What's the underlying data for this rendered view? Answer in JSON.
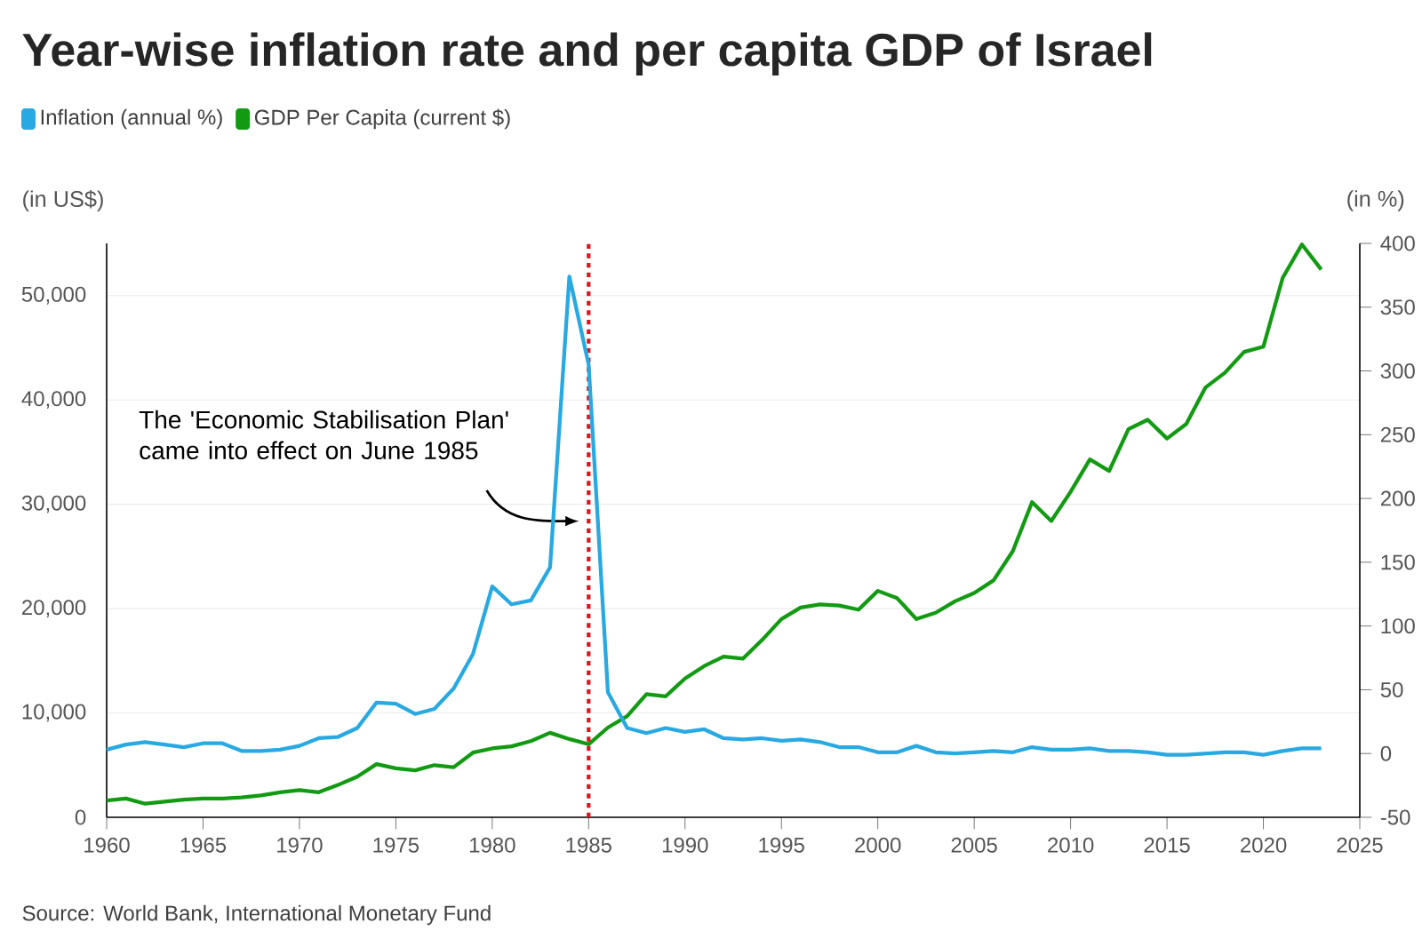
{
  "chart_data": {
    "type": "line",
    "title": "Year-wise inflation rate and per capita GDP of Israel",
    "ylabel": "(in US$)",
    "y2label": "(in %)",
    "x": [
      1960,
      1961,
      1962,
      1963,
      1964,
      1965,
      1966,
      1967,
      1968,
      1969,
      1970,
      1971,
      1972,
      1973,
      1974,
      1975,
      1976,
      1977,
      1978,
      1979,
      1980,
      1981,
      1982,
      1983,
      1984,
      1985,
      1986,
      1987,
      1988,
      1989,
      1990,
      1991,
      1992,
      1993,
      1994,
      1995,
      1996,
      1997,
      1998,
      1999,
      2000,
      2001,
      2002,
      2003,
      2004,
      2005,
      2006,
      2007,
      2008,
      2009,
      2010,
      2011,
      2012,
      2013,
      2014,
      2015,
      2016,
      2017,
      2018,
      2019,
      2020,
      2021,
      2022,
      2023
    ],
    "series": [
      {
        "name": "Inflation (annual %)",
        "color": "#29a9e1",
        "axis": "y2",
        "values": [
          3,
          7,
          9,
          7,
          5,
          8,
          8,
          2,
          2,
          3,
          6,
          12,
          13,
          20,
          40,
          39,
          31,
          35,
          51,
          78,
          131,
          117,
          120,
          146,
          374,
          305,
          48,
          20,
          16,
          20,
          17,
          19,
          12,
          11,
          12,
          10,
          11,
          9,
          5,
          5,
          1,
          1,
          6,
          1,
          0,
          1,
          2,
          1,
          5,
          3,
          3,
          4,
          2,
          2,
          1,
          -1,
          -1,
          0,
          1,
          1,
          -1,
          2,
          4,
          4
        ]
      },
      {
        "name": "GDP Per Capita (current $)",
        "color": "#139a13",
        "values": [
          1600,
          1800,
          1300,
          1500,
          1700,
          1800,
          1800,
          1900,
          2100,
          2400,
          2600,
          2400,
          3100,
          3900,
          5100,
          4700,
          4500,
          5000,
          4800,
          6200,
          6600,
          6800,
          7300,
          8100,
          7500,
          7000,
          8600,
          9700,
          11800,
          11600,
          13300,
          14500,
          15400,
          15200,
          17000,
          19000,
          20100,
          20400,
          20300,
          19900,
          21700,
          21000,
          19000,
          19600,
          20700,
          21500,
          22700,
          25500,
          30200,
          28400,
          31200,
          34300,
          33200,
          37200,
          38100,
          36300,
          37700,
          41200,
          42600,
          44600,
          45100,
          51700,
          54900,
          52500
        ]
      }
    ],
    "xlim": [
      1960,
      2025
    ],
    "xticks": [
      1960,
      1965,
      1970,
      1975,
      1980,
      1985,
      1990,
      1995,
      2000,
      2005,
      2010,
      2015,
      2020,
      2025
    ],
    "ylim": [
      0,
      55000
    ],
    "yticks": [
      0,
      {
        "value": 10000,
        "label": "10,000"
      },
      {
        "value": 20000,
        "label": "20,000"
      },
      {
        "value": 30000,
        "label": "30,000"
      },
      {
        "value": 40000,
        "label": "40,000"
      },
      {
        "value": 50000,
        "label": "50,000"
      }
    ],
    "y2lim": [
      -50,
      400
    ],
    "y2ticks": [
      -50,
      0,
      50,
      100,
      150,
      200,
      250,
      300,
      350,
      400
    ],
    "ref_lines": [
      {
        "axis": "x",
        "value": 1985,
        "color": "#e0141c",
        "line_style": "dotted"
      }
    ],
    "annotations": [
      "The 'Economic Stabilisation Plan' came into effect on June 1985",
      "Source: World Bank, International Monetary Fund"
    ],
    "grid": "y",
    "legend": "top left",
    "marker": "none",
    "line_style": "solid"
  }
}
